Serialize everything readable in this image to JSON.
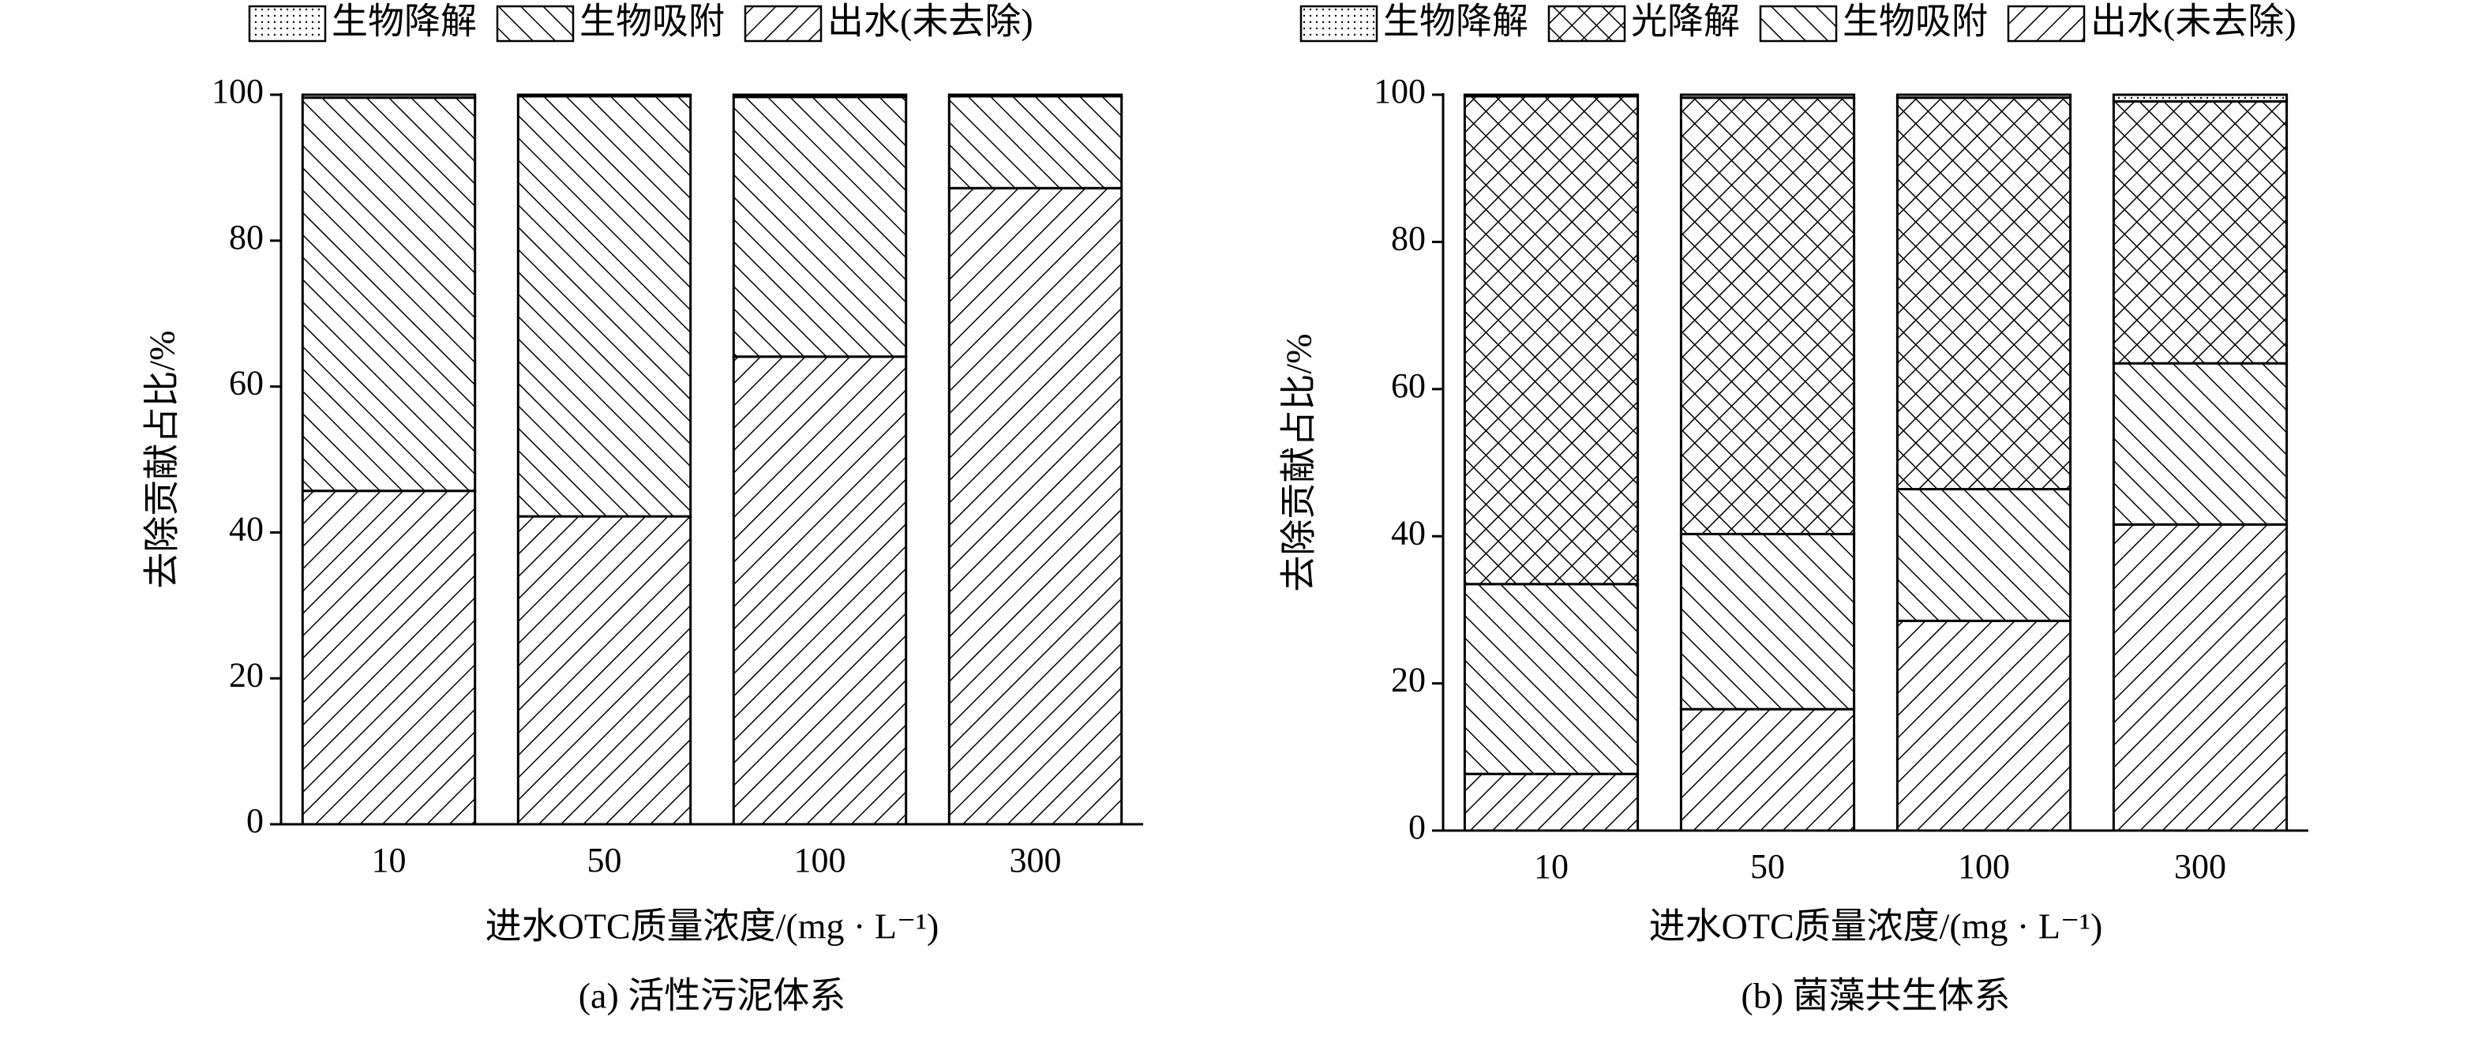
{
  "chart_data": [
    {
      "type": "bar",
      "stacked": true,
      "caption": "(a) 活性污泥体系",
      "xlabel": "进水OTC质量浓度/(mg · L⁻¹)",
      "ylabel": "去除贡献占比/%",
      "categories": [
        "10",
        "50",
        "100",
        "300"
      ],
      "series": [
        {
          "name": "生物降解",
          "pattern": "dots",
          "values": [
            0.4,
            0.2,
            0.3,
            0.2
          ]
        },
        {
          "name": "生物吸附",
          "pattern": "backslash",
          "values": [
            53.9,
            57.6,
            35.6,
            12.6
          ]
        },
        {
          "name": "出水(未去除)",
          "pattern": "slash",
          "values": [
            45.7,
            42.2,
            64.1,
            87.2
          ]
        }
      ],
      "ylim": [
        0,
        100
      ],
      "yticks": [
        0,
        20,
        40,
        60,
        80,
        100
      ]
    },
    {
      "type": "bar",
      "stacked": true,
      "caption": "(b) 菌藻共生体系",
      "xlabel": "进水OTC质量浓度/(mg · L⁻¹)",
      "ylabel": "去除贡献占比/%",
      "categories": [
        "10",
        "50",
        "100",
        "300"
      ],
      "series": [
        {
          "name": "生物降解",
          "pattern": "dots",
          "values": [
            0.2,
            0.4,
            0.4,
            0.9
          ]
        },
        {
          "name": "光降解",
          "pattern": "crosshatch",
          "values": [
            66.3,
            59.3,
            53.2,
            35.6
          ]
        },
        {
          "name": "生物吸附",
          "pattern": "backslash",
          "values": [
            25.8,
            23.8,
            17.9,
            21.9
          ]
        },
        {
          "name": "出水(未去除)",
          "pattern": "slash",
          "values": [
            7.7,
            16.5,
            28.5,
            41.6
          ]
        }
      ],
      "ylim": [
        0,
        100
      ],
      "yticks": [
        0,
        20,
        40,
        60,
        80,
        100
      ]
    }
  ]
}
